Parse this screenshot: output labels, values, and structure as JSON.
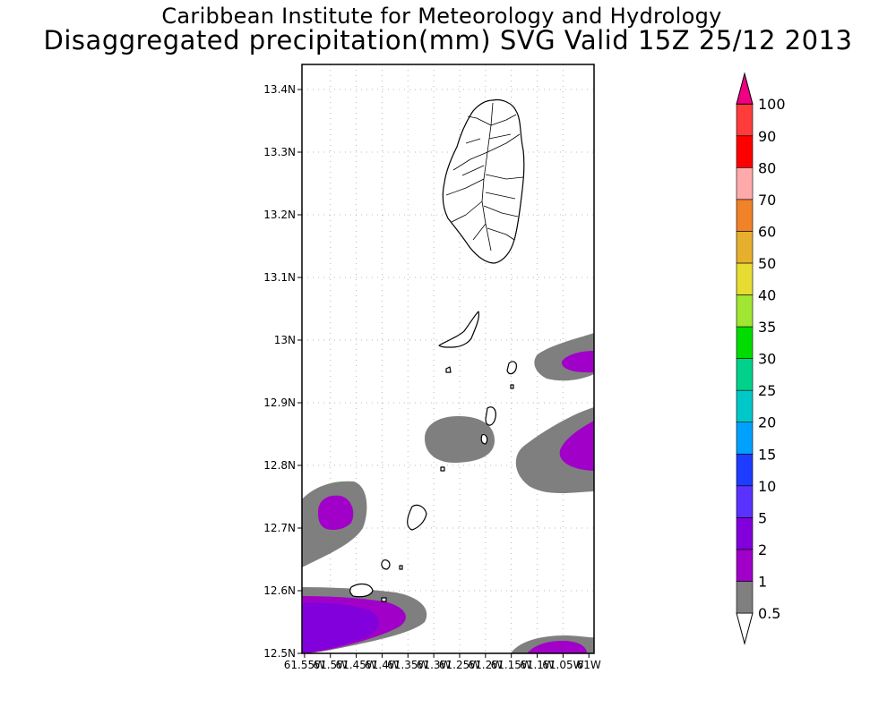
{
  "header": {
    "title": "Caribbean Institute for Meteorology and Hydrology",
    "subtitle": "Disaggregated precipitation(mm) SVG Valid 15Z 25/12 2013"
  },
  "map": {
    "lat_range": [
      12.5,
      13.44
    ],
    "lon_range": [
      -61.555,
      -60.99
    ],
    "lat_ticks": [
      "12.5N",
      "12.6N",
      "12.7N",
      "12.8N",
      "12.9N",
      "13N",
      "13.1N",
      "13.2N",
      "13.3N",
      "13.4N"
    ],
    "lon_ticks": [
      "61.55W",
      "61.5W",
      "61.45W",
      "61.4W",
      "61.35W",
      "61.3W",
      "61.25W",
      "61.2W",
      "61.15W",
      "61.1W",
      "61.05W",
      "61W"
    ],
    "grid": true
  },
  "legend": {
    "levels": [
      "0.5",
      "1",
      "2",
      "5",
      "10",
      "15",
      "20",
      "25",
      "30",
      "35",
      "40",
      "50",
      "60",
      "70",
      "80",
      "90",
      "100"
    ],
    "colors": [
      "#7f7f7f",
      "#a000c8",
      "#8200dc",
      "#5a32ff",
      "#1e3cff",
      "#00a0ff",
      "#00c8c8",
      "#00d28c",
      "#00dc00",
      "#a0e632",
      "#e6dc32",
      "#e6af2d",
      "#f08228",
      "#ffaaaa",
      "#ff0000",
      "#ff3c3c",
      "#f00082"
    ]
  }
}
